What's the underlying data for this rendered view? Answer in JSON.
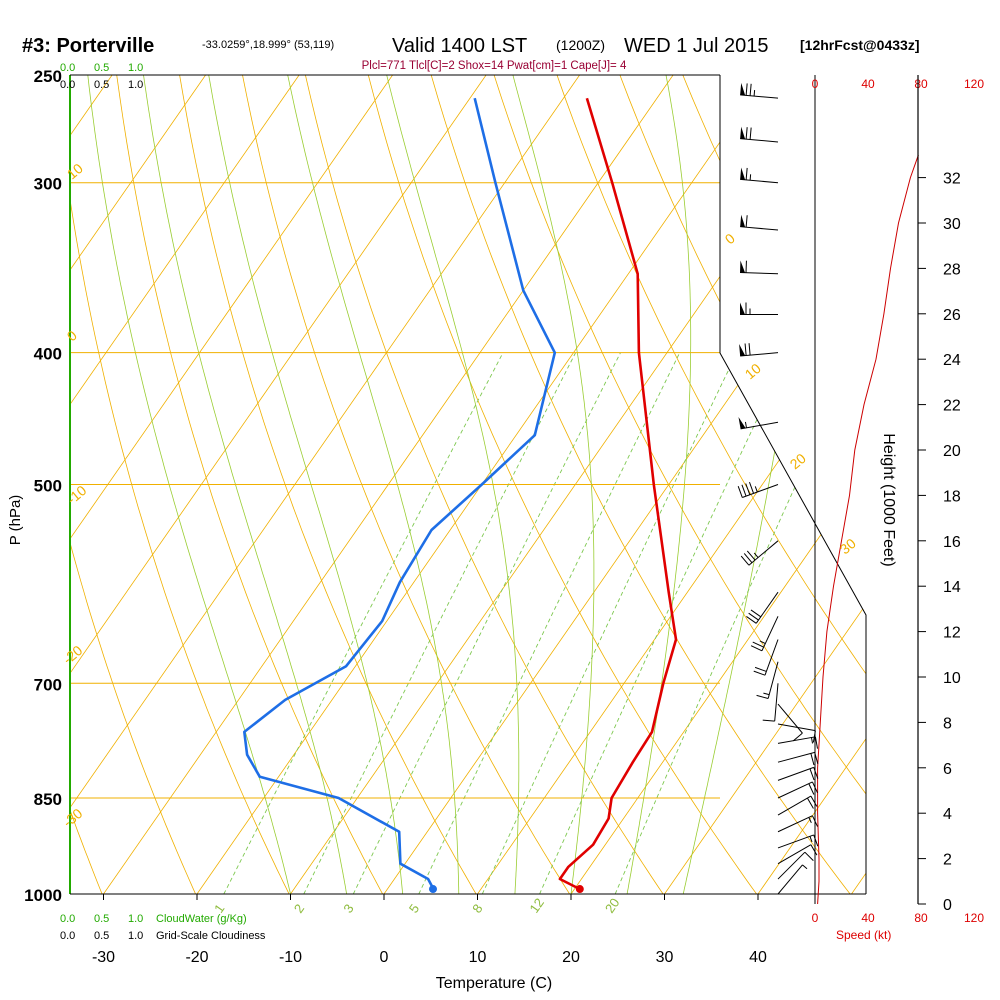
{
  "header": {
    "station": "#3: Porterville",
    "location": "-33.0259°,18.999° (53,119)",
    "valid": "Valid 1400 LST",
    "zulu": "(1200Z)",
    "date": "WED 1 Jul 2015",
    "forecast": "[12hrFcst@0433z]",
    "indices": "Plcl=771 Tlcl[C]=2 Shox=14 Pwat[cm]=1 Cape[J]= 4"
  },
  "cloud": {
    "water_ticks": [
      "0.0",
      "0.5",
      "1.0"
    ],
    "water_label": "CloudWater (g/Kg)",
    "cover_ticks": [
      "0.0",
      "0.5",
      "1.0"
    ],
    "cover_label": "Grid-Scale Cloudiness"
  },
  "colors": {
    "isobar": "#f0b000",
    "dry_adiabat": "#f0b000",
    "moist_adiabat": "#9acd32",
    "mixing_ratio": "#7ec850",
    "temperature": "#e00000",
    "dewpoint": "#1e6ee6",
    "wind_speed": "#cc0000",
    "cloud": "#22aa00",
    "indices": "#990033"
  },
  "chart_data": {
    "type": "line",
    "xlabel": "Temperature (C)",
    "ylabel": "P (hPa)",
    "y2label": "Height (1000 Feet)",
    "speed_label": "Speed (kt)",
    "pressure_ticks": [
      250,
      300,
      400,
      500,
      700,
      850,
      1000
    ],
    "temp_ticks": [
      -30,
      -20,
      -10,
      0,
      10,
      20,
      30,
      40
    ],
    "height_ticks": [
      0,
      2,
      4,
      6,
      8,
      10,
      12,
      14,
      16,
      18,
      20,
      22,
      24,
      26,
      28,
      30,
      32
    ],
    "speed_ticks": [
      0,
      40,
      80,
      120
    ],
    "dry_adiabat_labels": [
      10,
      0,
      -10,
      -20,
      -30,
      0,
      10,
      20,
      30
    ],
    "mixing_ratio_labels": [
      "1",
      "2",
      "3",
      "5",
      "8",
      "12",
      "20"
    ],
    "temperature_profile": [
      [
        990,
        20.3
      ],
      [
        975,
        17.7
      ],
      [
        955,
        17.7
      ],
      [
        920,
        18.7
      ],
      [
        880,
        18.4
      ],
      [
        850,
        17.2
      ],
      [
        800,
        16.8
      ],
      [
        760,
        16.6
      ],
      [
        700,
        14.2
      ],
      [
        650,
        12.3
      ],
      [
        600,
        8.0
      ],
      [
        500,
        -1.6
      ],
      [
        400,
        -13.0
      ],
      [
        350,
        -19.0
      ],
      [
        300,
        -28.5
      ],
      [
        260,
        -37.5
      ]
    ],
    "dewpoint_profile": [
      [
        990,
        4.8
      ],
      [
        975,
        3.6
      ],
      [
        950,
        -0.5
      ],
      [
        900,
        -3.0
      ],
      [
        850,
        -12.0
      ],
      [
        820,
        -22.0
      ],
      [
        790,
        -25.0
      ],
      [
        760,
        -27.0
      ],
      [
        720,
        -25.0
      ],
      [
        680,
        -21.0
      ],
      [
        630,
        -20.5
      ],
      [
        590,
        -21.5
      ],
      [
        540,
        -22.0
      ],
      [
        500,
        -20.0
      ],
      [
        460,
        -18.0
      ],
      [
        400,
        -22.0
      ],
      [
        360,
        -30.0
      ],
      [
        300,
        -41.0
      ],
      [
        260,
        -49.5
      ]
    ],
    "surface_temperature": 20.5,
    "surface_dewpoint": 4.8,
    "wind_profile": [
      [
        1000,
        40,
        8
      ],
      [
        975,
        45,
        10
      ],
      [
        950,
        60,
        12
      ],
      [
        925,
        70,
        15
      ],
      [
        900,
        65,
        18
      ],
      [
        875,
        60,
        20
      ],
      [
        850,
        65,
        22
      ],
      [
        825,
        70,
        24
      ],
      [
        800,
        75,
        20
      ],
      [
        775,
        80,
        16
      ],
      [
        750,
        100,
        12
      ],
      [
        725,
        140,
        10
      ],
      [
        700,
        185,
        12
      ],
      [
        675,
        195,
        18
      ],
      [
        650,
        200,
        22
      ],
      [
        625,
        205,
        25
      ],
      [
        600,
        215,
        30
      ],
      [
        550,
        230,
        35
      ],
      [
        500,
        250,
        45
      ],
      [
        450,
        260,
        55
      ],
      [
        400,
        265,
        70
      ],
      [
        375,
        270,
        65
      ],
      [
        350,
        272,
        60
      ],
      [
        325,
        275,
        60
      ],
      [
        300,
        275,
        65
      ],
      [
        280,
        275,
        70
      ],
      [
        260,
        275,
        75
      ]
    ],
    "speed_profile": [
      [
        0,
        2
      ],
      [
        1,
        3
      ],
      [
        2,
        3
      ],
      [
        4,
        2
      ],
      [
        6,
        2
      ],
      [
        8,
        4
      ],
      [
        10,
        6
      ],
      [
        12,
        9
      ],
      [
        14,
        14
      ],
      [
        16,
        20
      ],
      [
        18,
        26
      ],
      [
        20,
        30
      ],
      [
        22,
        37
      ],
      [
        24,
        46
      ],
      [
        26,
        52
      ],
      [
        28,
        57
      ],
      [
        30,
        63
      ],
      [
        32,
        72
      ],
      [
        33,
        78
      ]
    ]
  }
}
